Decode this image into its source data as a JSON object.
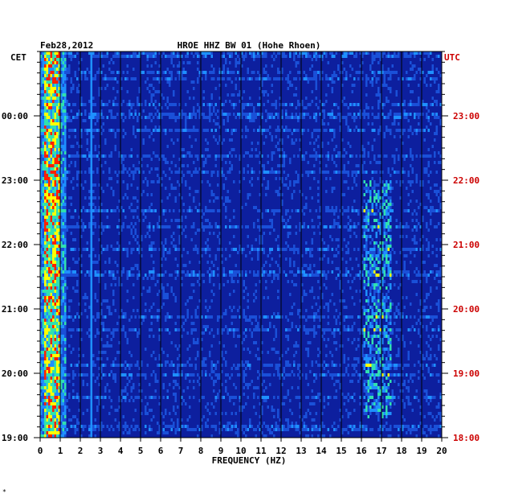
{
  "chart_data": {
    "type": "heatmap",
    "date": "Feb28,2012",
    "title": "HROE HHZ BW 01 (Hohe Rhoen)",
    "xlabel": "FREQUENCY (HZ)",
    "left_axis_label": "CET",
    "right_axis_label": "UTC",
    "xlim": [
      0,
      20
    ],
    "x_ticks": [
      "0",
      "1",
      "2",
      "3",
      "4",
      "5",
      "6",
      "7",
      "8",
      "9",
      "10",
      "11",
      "12",
      "13",
      "14",
      "15",
      "16",
      "17",
      "18",
      "19",
      "20"
    ],
    "left_ticks": [
      "00:00",
      "23:00",
      "22:00",
      "21:00",
      "20:00",
      "19:00"
    ],
    "right_ticks": [
      "23:00",
      "22:00",
      "21:00",
      "20:00",
      "19:00",
      "18:00"
    ],
    "colors": {
      "background": "#0d1f9e",
      "grid": "#000000",
      "utc": "#cc0000",
      "low": "#0a1a8c",
      "mid": "#1e90ff",
      "high": "#ffff00",
      "peak": "#ff2000"
    },
    "dominant_bands_hz": [
      [
        0.2,
        0.9
      ],
      [
        2.5,
        2.6
      ],
      [
        16.0,
        17.4
      ]
    ],
    "footer_mark": "*"
  }
}
